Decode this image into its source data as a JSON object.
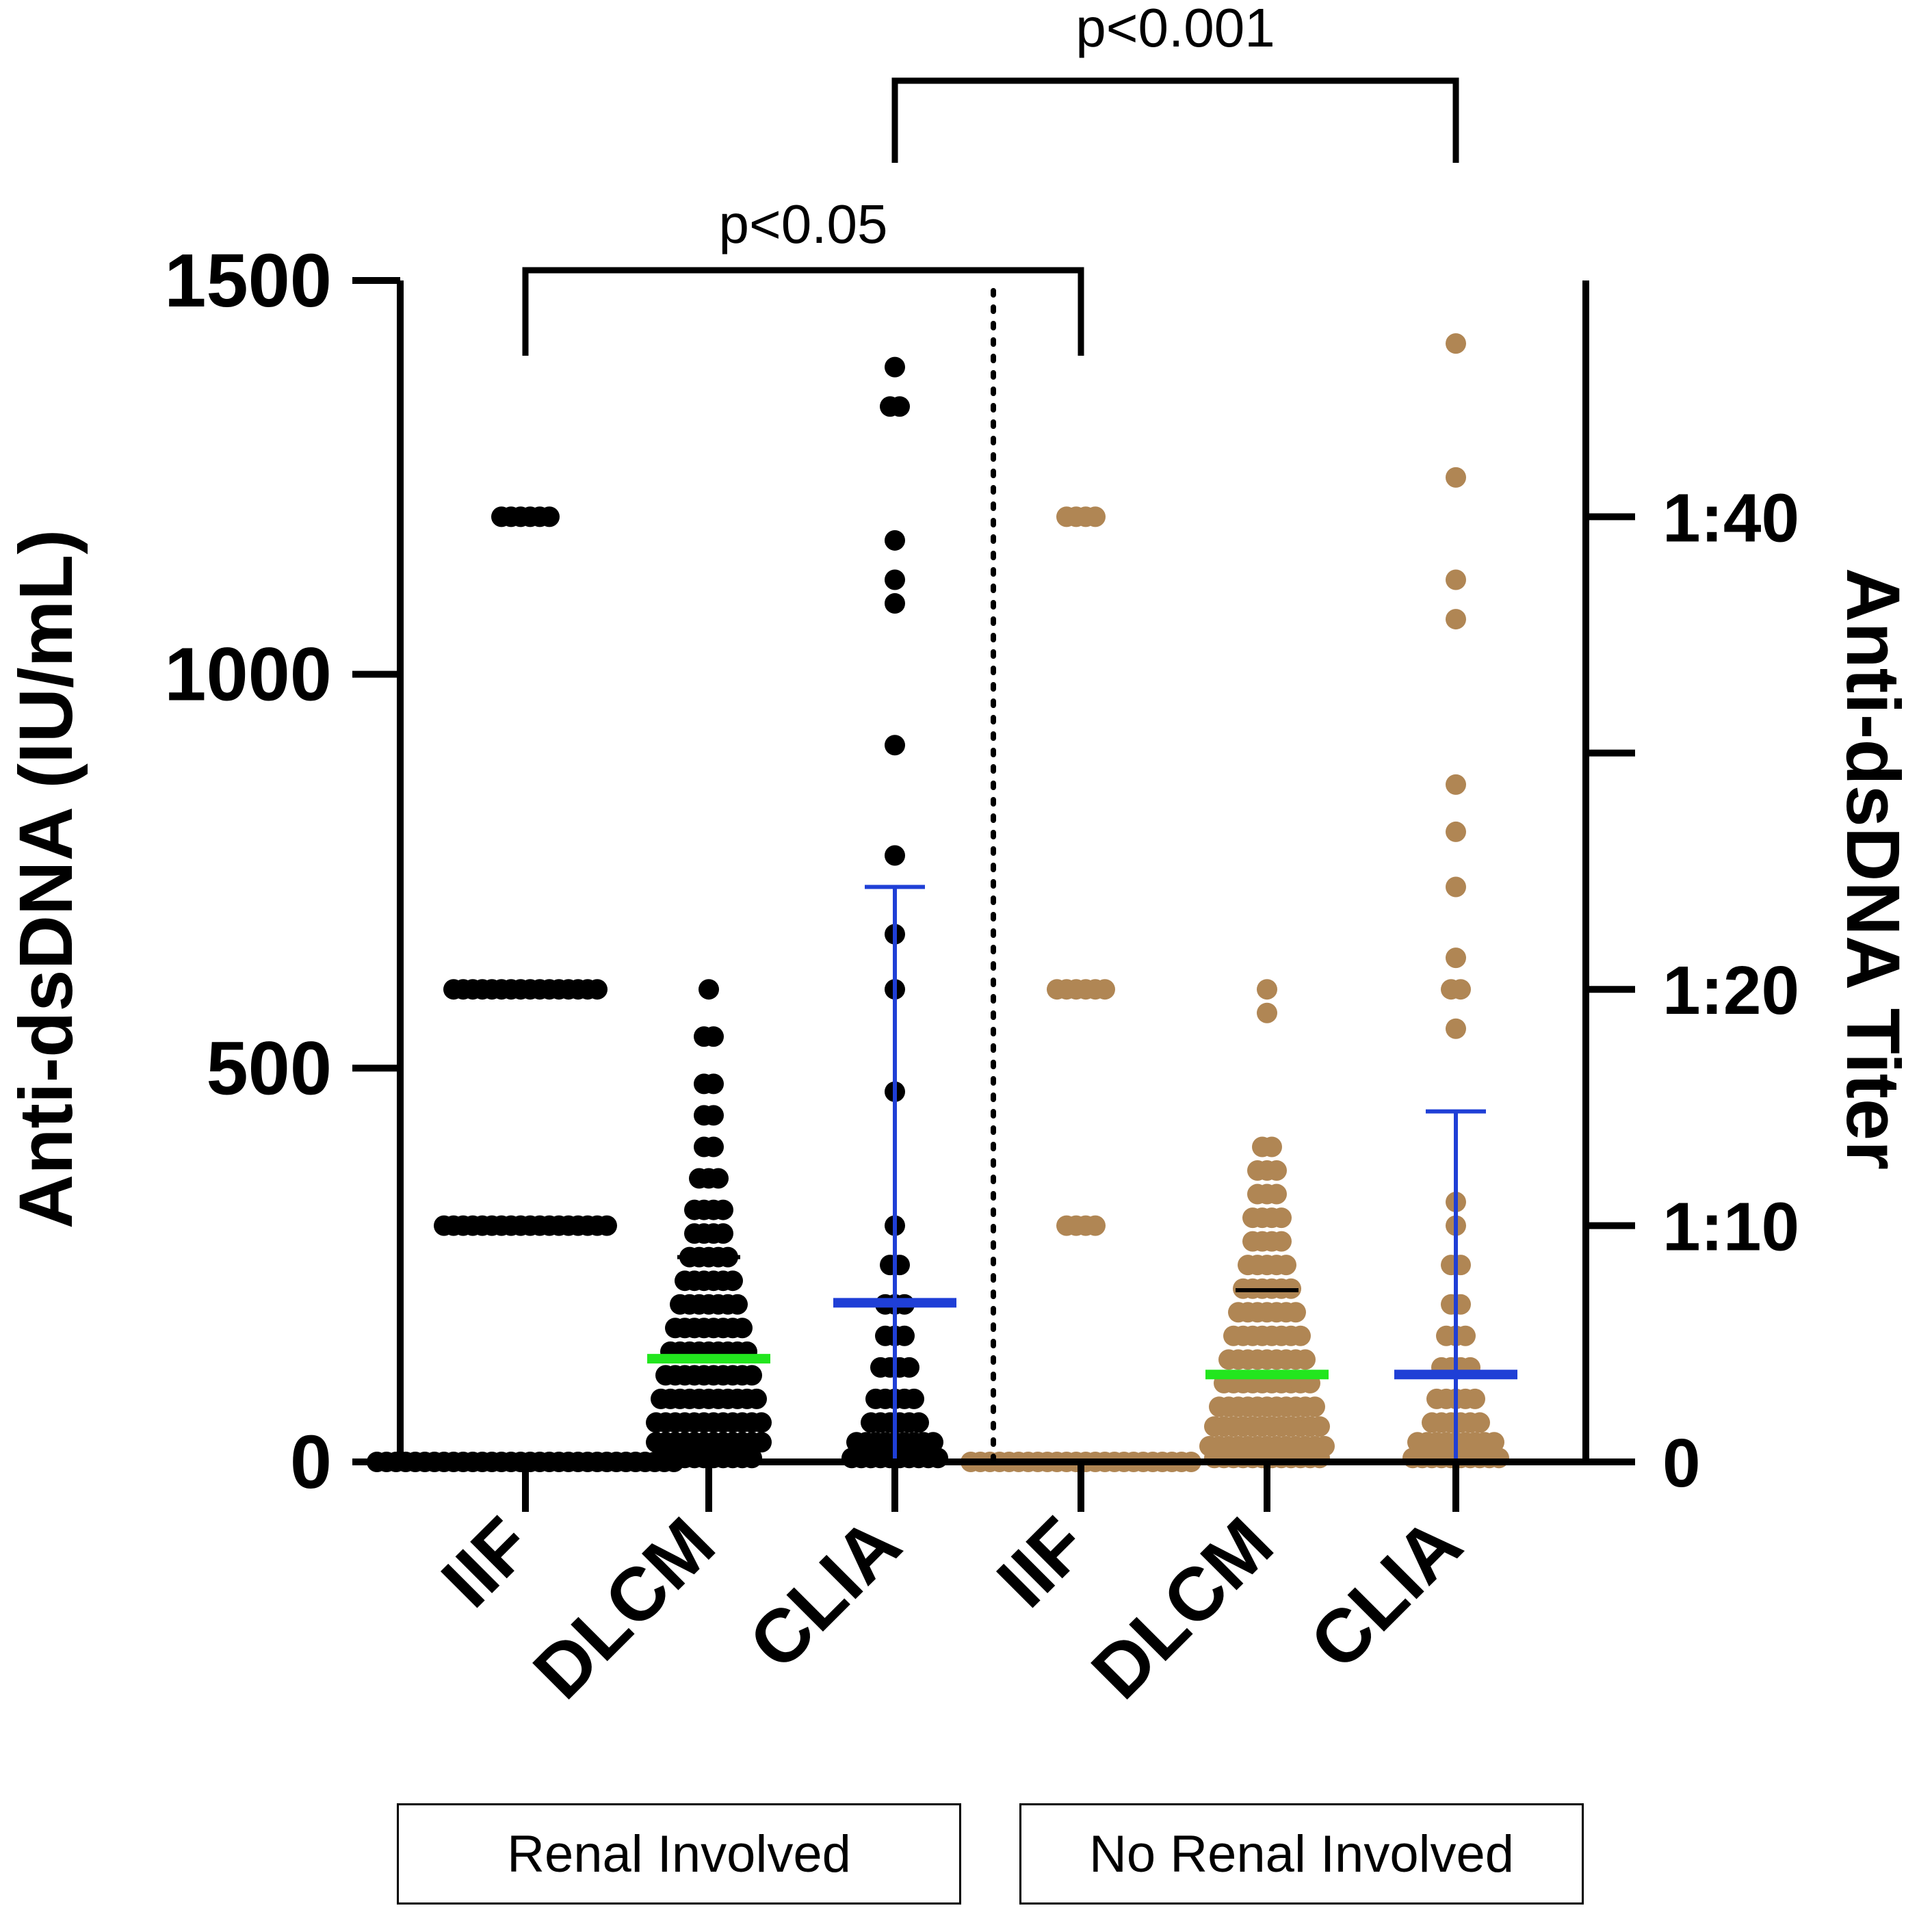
{
  "chart_data": {
    "type": "scatter",
    "subtype": "dot plot (column scatter) with mean and SD bars",
    "ylabel": "Anti-dsDNA (IU/mL)",
    "y2label": "Anti-dsDNA Titer",
    "ylim": [
      0,
      1500
    ],
    "yticks": [
      "0",
      "500",
      "1000",
      "1500"
    ],
    "y2ticks": [
      {
        "label": "0",
        "value": 0
      },
      {
        "label": "1:10",
        "value": 300
      },
      {
        "label": "1:20",
        "value": 600
      },
      {
        "label": "",
        "value": 900
      },
      {
        "label": "1:40",
        "value": 1200
      }
    ],
    "categories": [
      "IIF",
      "DLCM",
      "CLIA",
      "IIF",
      "DLCM",
      "CLIA"
    ],
    "groups": [
      {
        "label": "Renal Involved",
        "categories": [
          0,
          1,
          2
        ]
      },
      {
        "label": "No Renal Involved",
        "categories": [
          3,
          4,
          5
        ]
      }
    ],
    "colors": {
      "renal": "#000000",
      "no_renal": "#b08654",
      "mean_line": "#22e61e",
      "clia_bar": "#1f3fd6",
      "black": "#000000"
    },
    "series": [
      {
        "name": "Renal Involved IIF",
        "color": "renal",
        "points": [
          [
            0,
            32
          ],
          [
            300,
            18
          ],
          [
            600,
            16
          ],
          [
            1200,
            6
          ]
        ]
      },
      {
        "name": "Renal Involved DLCM",
        "color": "renal",
        "points": [
          [
            600,
            1
          ],
          [
            540,
            2
          ],
          [
            480,
            2
          ],
          [
            440,
            2
          ],
          [
            400,
            2
          ],
          [
            360,
            3
          ],
          [
            320,
            4
          ],
          [
            290,
            4
          ],
          [
            260,
            5
          ],
          [
            230,
            6
          ],
          [
            200,
            7
          ],
          [
            170,
            8
          ],
          [
            140,
            9
          ],
          [
            110,
            10
          ],
          [
            80,
            11
          ],
          [
            50,
            12
          ],
          [
            25,
            12
          ],
          [
            5,
            10
          ]
        ],
        "mean": 131,
        "mean_plus_sd": 260
      },
      {
        "name": "Renal Involved CLIA",
        "color": "renal",
        "points": [
          [
            1390,
            1
          ],
          [
            1340,
            2
          ],
          [
            1170,
            1
          ],
          [
            1120,
            1
          ],
          [
            1090,
            1
          ],
          [
            910,
            1
          ],
          [
            770,
            1
          ],
          [
            670,
            1
          ],
          [
            600,
            1
          ],
          [
            470,
            1
          ],
          [
            300,
            1
          ],
          [
            250,
            2
          ],
          [
            200,
            3
          ],
          [
            160,
            3
          ],
          [
            120,
            4
          ],
          [
            80,
            5
          ],
          [
            50,
            6
          ],
          [
            25,
            9
          ],
          [
            5,
            10
          ]
        ],
        "mean": 202,
        "sd_low": 0,
        "sd_high": 730
      },
      {
        "name": "No Renal Involved IIF",
        "color": "no_renal",
        "points": [
          [
            0,
            24
          ],
          [
            300,
            4
          ],
          [
            600,
            6
          ],
          [
            1200,
            4
          ]
        ]
      },
      {
        "name": "No Renal Involved DLCM",
        "color": "no_renal",
        "points": [
          [
            600,
            1
          ],
          [
            570,
            1
          ],
          [
            400,
            2
          ],
          [
            370,
            3
          ],
          [
            340,
            3
          ],
          [
            310,
            4
          ],
          [
            280,
            4
          ],
          [
            250,
            5
          ],
          [
            220,
            6
          ],
          [
            190,
            7
          ],
          [
            160,
            8
          ],
          [
            130,
            9
          ],
          [
            100,
            10
          ],
          [
            70,
            11
          ],
          [
            45,
            12
          ],
          [
            20,
            13
          ],
          [
            5,
            12
          ]
        ],
        "mean": 111,
        "mean_plus_sd": 218
      },
      {
        "name": "No Renal Involved CLIA",
        "color": "no_renal",
        "points": [
          [
            1420,
            1
          ],
          [
            1250,
            1
          ],
          [
            1120,
            1
          ],
          [
            1070,
            1
          ],
          [
            860,
            1
          ],
          [
            800,
            1
          ],
          [
            730,
            1
          ],
          [
            640,
            1
          ],
          [
            600,
            2
          ],
          [
            550,
            1
          ],
          [
            330,
            1
          ],
          [
            300,
            1
          ],
          [
            250,
            2
          ],
          [
            200,
            2
          ],
          [
            160,
            3
          ],
          [
            120,
            4
          ],
          [
            80,
            5
          ],
          [
            50,
            6
          ],
          [
            25,
            9
          ],
          [
            5,
            10
          ]
        ],
        "mean": 111,
        "sd_low": 0,
        "sd_high": 445
      }
    ],
    "annotations": [
      {
        "label": "p<0.05",
        "from": 0,
        "to": 3,
        "level": 1
      },
      {
        "label": "p<0.001",
        "from": 2,
        "to": 5,
        "level": 2
      }
    ]
  }
}
